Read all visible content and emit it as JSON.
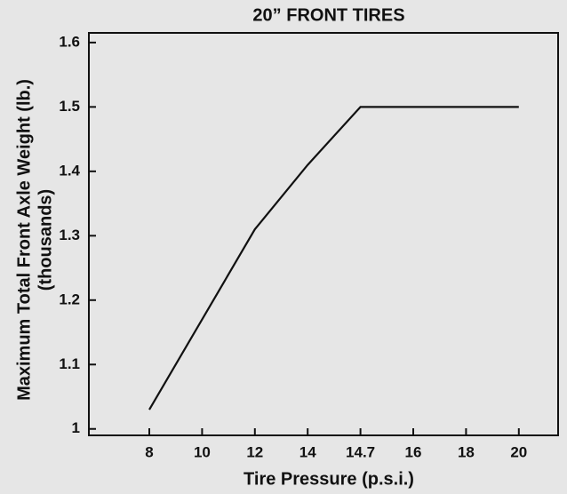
{
  "chart_data": {
    "type": "line",
    "title": "20” FRONT TIRES",
    "x_label": "Tire Pressure (p.s.i.)",
    "y_label": "Maximum Total Front Axle Weight (lb.)",
    "y_sublabel": "(thousands)",
    "categories": [
      "8",
      "10",
      "12",
      "14",
      "14.7",
      "16",
      "18",
      "20"
    ],
    "values": [
      1.03,
      1.17,
      1.31,
      1.41,
      1.5,
      1.5,
      1.5,
      1.5
    ],
    "color": "#111111",
    "ylim": [
      0.99,
      1.615
    ],
    "yticks": [
      1,
      1.1,
      1.2,
      1.3,
      1.4,
      1.5,
      1.6
    ],
    "grid": false
  }
}
